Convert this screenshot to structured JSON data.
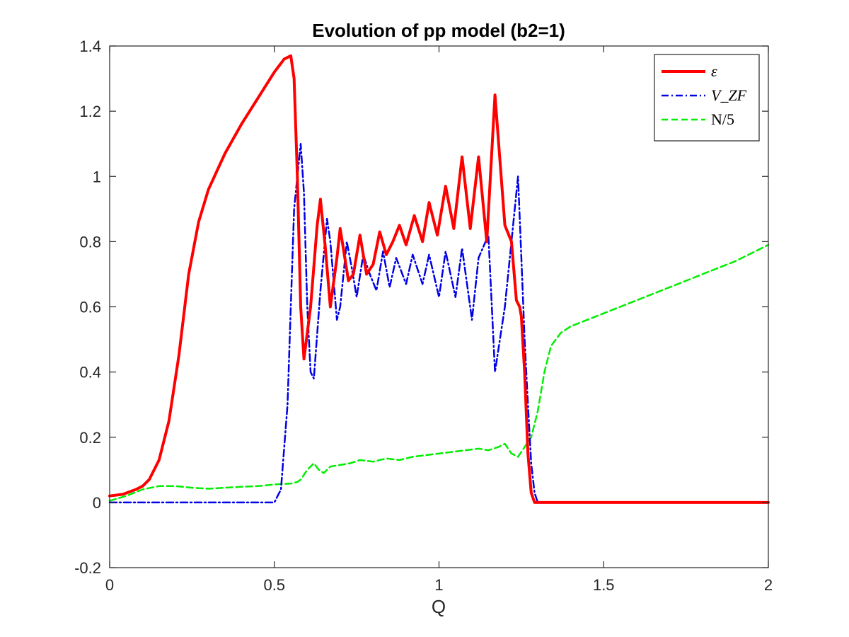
{
  "chart_data": {
    "type": "line",
    "title": "Evolution of pp model (b2=1)",
    "xlabel": "Q",
    "ylabel": "",
    "xlim": [
      0,
      2
    ],
    "ylim": [
      -0.2,
      1.4
    ],
    "xticks": [
      0,
      0.5,
      1,
      1.5,
      2
    ],
    "xtick_labels": [
      "0",
      "0.5",
      "1",
      "1.5",
      "2"
    ],
    "yticks": [
      -0.2,
      0,
      0.2,
      0.4,
      0.6,
      0.8,
      1,
      1.2,
      1.4
    ],
    "ytick_labels": [
      "-0.2",
      "0",
      "0.2",
      "0.4",
      "0.6",
      "0.8",
      "1",
      "1.2",
      "1.4"
    ],
    "grid": false,
    "legend_position": "top-right",
    "series": [
      {
        "name": "ε",
        "color": "#ff0000",
        "style": "solid",
        "x": [
          0,
          0.04,
          0.08,
          0.1,
          0.12,
          0.15,
          0.18,
          0.21,
          0.24,
          0.27,
          0.3,
          0.35,
          0.4,
          0.45,
          0.5,
          0.53,
          0.55,
          0.56,
          0.57,
          0.58,
          0.59,
          0.61,
          0.63,
          0.64,
          0.655,
          0.67,
          0.69,
          0.7,
          0.725,
          0.74,
          0.76,
          0.78,
          0.8,
          0.82,
          0.84,
          0.86,
          0.88,
          0.9,
          0.925,
          0.95,
          0.97,
          0.995,
          1.02,
          1.045,
          1.07,
          1.095,
          1.12,
          1.145,
          1.17,
          1.2,
          1.22,
          1.235,
          1.245,
          1.25,
          1.26,
          1.27,
          1.28,
          1.29,
          1.3,
          1.31,
          1.32,
          1.35,
          1.4,
          1.5,
          1.7,
          2.0
        ],
        "y": [
          0.02,
          0.025,
          0.04,
          0.05,
          0.07,
          0.13,
          0.25,
          0.45,
          0.7,
          0.86,
          0.96,
          1.07,
          1.16,
          1.24,
          1.32,
          1.36,
          1.37,
          1.3,
          1.0,
          0.6,
          0.44,
          0.6,
          0.85,
          0.93,
          0.78,
          0.6,
          0.75,
          0.84,
          0.68,
          0.7,
          0.82,
          0.7,
          0.73,
          0.83,
          0.76,
          0.8,
          0.85,
          0.79,
          0.88,
          0.8,
          0.92,
          0.82,
          0.97,
          0.84,
          1.06,
          0.84,
          1.06,
          0.8,
          1.25,
          0.85,
          0.8,
          0.62,
          0.6,
          0.57,
          0.4,
          0.15,
          0.03,
          0.0,
          0.0,
          0.0,
          0.0,
          0.0,
          0.0,
          0.0,
          0.0,
          0.0
        ]
      },
      {
        "name": "V_ZF",
        "color": "#0000e6",
        "style": "dashdot",
        "x": [
          0,
          0.1,
          0.2,
          0.3,
          0.4,
          0.5,
          0.52,
          0.54,
          0.55,
          0.56,
          0.57,
          0.58,
          0.59,
          0.6,
          0.61,
          0.62,
          0.64,
          0.66,
          0.67,
          0.69,
          0.7,
          0.72,
          0.735,
          0.75,
          0.77,
          0.79,
          0.81,
          0.83,
          0.85,
          0.87,
          0.9,
          0.92,
          0.95,
          0.97,
          1.0,
          1.02,
          1.05,
          1.07,
          1.1,
          1.12,
          1.15,
          1.17,
          1.2,
          1.22,
          1.24,
          1.25,
          1.26,
          1.27,
          1.28,
          1.29,
          1.3,
          1.31,
          1.32,
          1.35,
          1.5,
          2.0
        ],
        "y": [
          0.0,
          0.0,
          0.0,
          0.0,
          0.0,
          0.0,
          0.04,
          0.3,
          0.6,
          0.9,
          1.0,
          1.1,
          0.95,
          0.6,
          0.4,
          0.38,
          0.65,
          0.87,
          0.8,
          0.56,
          0.6,
          0.8,
          0.72,
          0.63,
          0.76,
          0.7,
          0.65,
          0.77,
          0.66,
          0.75,
          0.67,
          0.76,
          0.67,
          0.76,
          0.63,
          0.77,
          0.63,
          0.78,
          0.56,
          0.75,
          0.82,
          0.4,
          0.6,
          0.8,
          1.0,
          0.75,
          0.5,
          0.3,
          0.12,
          0.03,
          0.0,
          0.0,
          0.0,
          0.0,
          0.0,
          0.0
        ]
      },
      {
        "name": "N/5",
        "color": "#00ee00",
        "style": "dashed",
        "x": [
          0,
          0.05,
          0.1,
          0.15,
          0.2,
          0.25,
          0.3,
          0.35,
          0.4,
          0.45,
          0.5,
          0.55,
          0.57,
          0.58,
          0.6,
          0.61,
          0.62,
          0.635,
          0.65,
          0.67,
          0.7,
          0.73,
          0.76,
          0.8,
          0.84,
          0.88,
          0.92,
          0.96,
          1.0,
          1.04,
          1.08,
          1.12,
          1.15,
          1.18,
          1.2,
          1.22,
          1.24,
          1.26,
          1.28,
          1.3,
          1.32,
          1.34,
          1.37,
          1.4,
          1.5,
          1.6,
          1.7,
          1.8,
          1.9,
          2.0
        ],
        "y": [
          0.005,
          0.02,
          0.04,
          0.05,
          0.05,
          0.045,
          0.042,
          0.045,
          0.048,
          0.05,
          0.055,
          0.058,
          0.063,
          0.07,
          0.1,
          0.11,
          0.12,
          0.1,
          0.09,
          0.11,
          0.115,
          0.12,
          0.13,
          0.125,
          0.135,
          0.13,
          0.14,
          0.145,
          0.15,
          0.155,
          0.16,
          0.165,
          0.16,
          0.17,
          0.18,
          0.15,
          0.14,
          0.17,
          0.2,
          0.28,
          0.4,
          0.48,
          0.52,
          0.54,
          0.58,
          0.62,
          0.66,
          0.7,
          0.74,
          0.79
        ]
      }
    ]
  }
}
